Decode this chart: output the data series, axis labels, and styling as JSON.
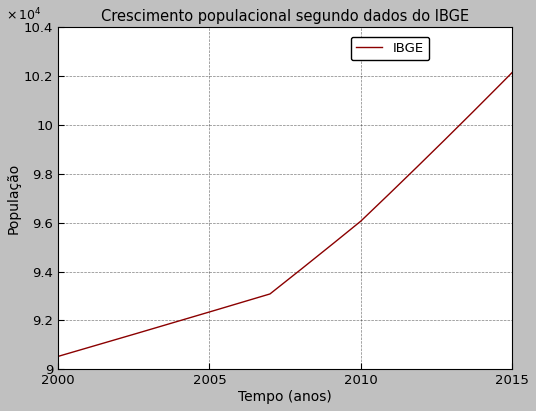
{
  "title": "Crescimento populacional segundo dados do IBGE",
  "xlabel": "Tempo (anos)",
  "ylabel": "População",
  "legend_label": "IBGE",
  "line_color": "#8B0000",
  "background_color": "#c0c0c0",
  "plot_bg_color": "#ffffff",
  "xlim": [
    2000,
    2015
  ],
  "ylim": [
    90000,
    104000
  ],
  "yticks": [
    90000,
    92000,
    94000,
    96000,
    98000,
    100000,
    102000,
    104000
  ],
  "xticks": [
    2000,
    2005,
    2010,
    2015
  ],
  "scale_factor": 10000,
  "ibge_years": [
    2000,
    2007,
    2010,
    2015
  ],
  "ibge_pop": [
    90532,
    93083,
    96056,
    102128
  ]
}
